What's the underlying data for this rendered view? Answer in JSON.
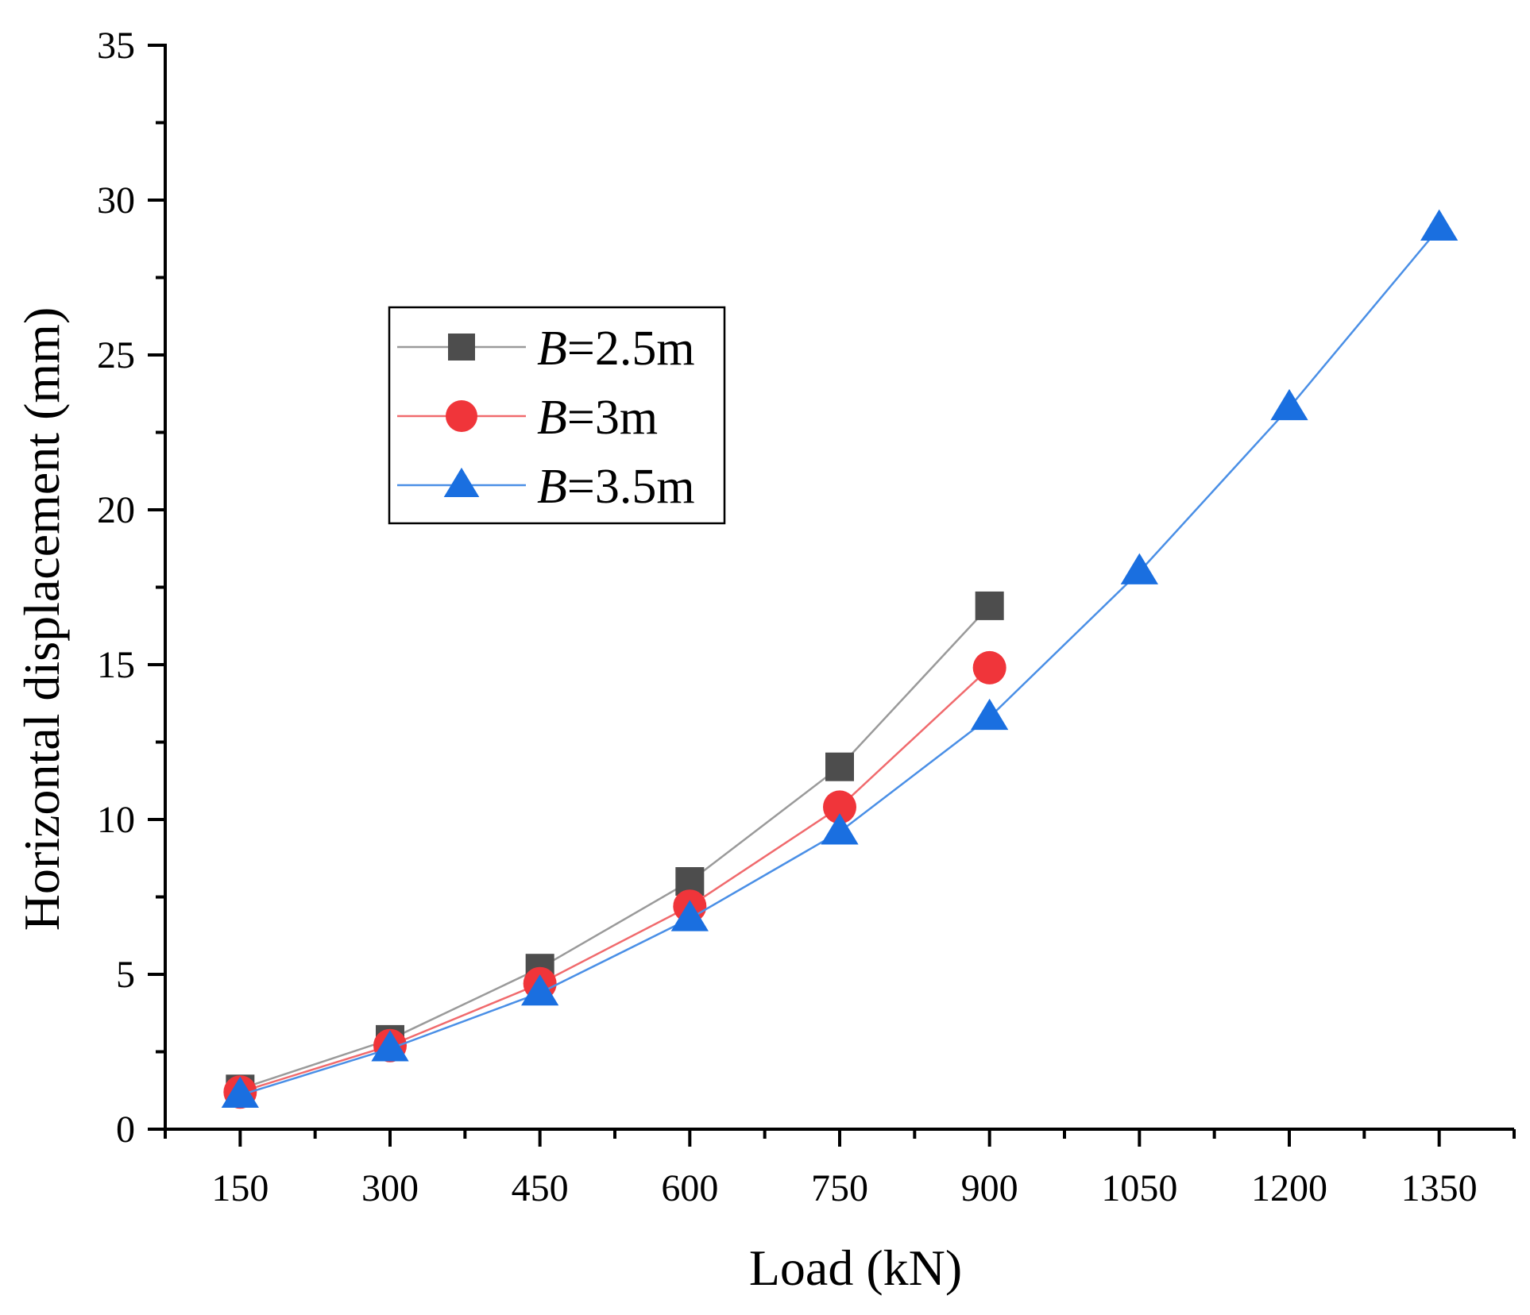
{
  "chart_data": {
    "type": "line",
    "xlabel": "Load (kN)",
    "ylabel": "Horizontal displacement (mm)",
    "x_ticks": [
      150,
      300,
      450,
      600,
      750,
      900,
      1050,
      1200,
      1350
    ],
    "y_ticks": [
      0,
      5,
      10,
      15,
      20,
      25,
      30,
      35
    ],
    "xlim": [
      75,
      1425
    ],
    "ylim": [
      0,
      35
    ],
    "grid": false,
    "legend_position": "upper-left",
    "series": [
      {
        "name_prefix": "B",
        "name_suffix": "=2.5m",
        "marker": "square",
        "color": "#4d4d4d",
        "line_color": "#9a9a9a",
        "x": [
          150,
          300,
          450,
          600,
          750,
          900
        ],
        "values": [
          1.3,
          2.9,
          5.2,
          8.0,
          11.7,
          16.9
        ]
      },
      {
        "name_prefix": "B",
        "name_suffix": "=3m",
        "marker": "circle",
        "color": "#f0353a",
        "line_color": "#f06a6d",
        "x": [
          150,
          300,
          450,
          600,
          750,
          900
        ],
        "values": [
          1.2,
          2.7,
          4.7,
          7.2,
          10.4,
          14.9
        ]
      },
      {
        "name_prefix": "B",
        "name_suffix": "=3.5m",
        "marker": "triangle",
        "color": "#1a6fe0",
        "line_color": "#4a8fe6",
        "x": [
          150,
          300,
          450,
          600,
          750,
          900,
          1050,
          1200,
          1350
        ],
        "values": [
          1.1,
          2.6,
          4.4,
          6.8,
          9.6,
          13.3,
          18.0,
          23.3,
          29.1
        ]
      }
    ]
  }
}
